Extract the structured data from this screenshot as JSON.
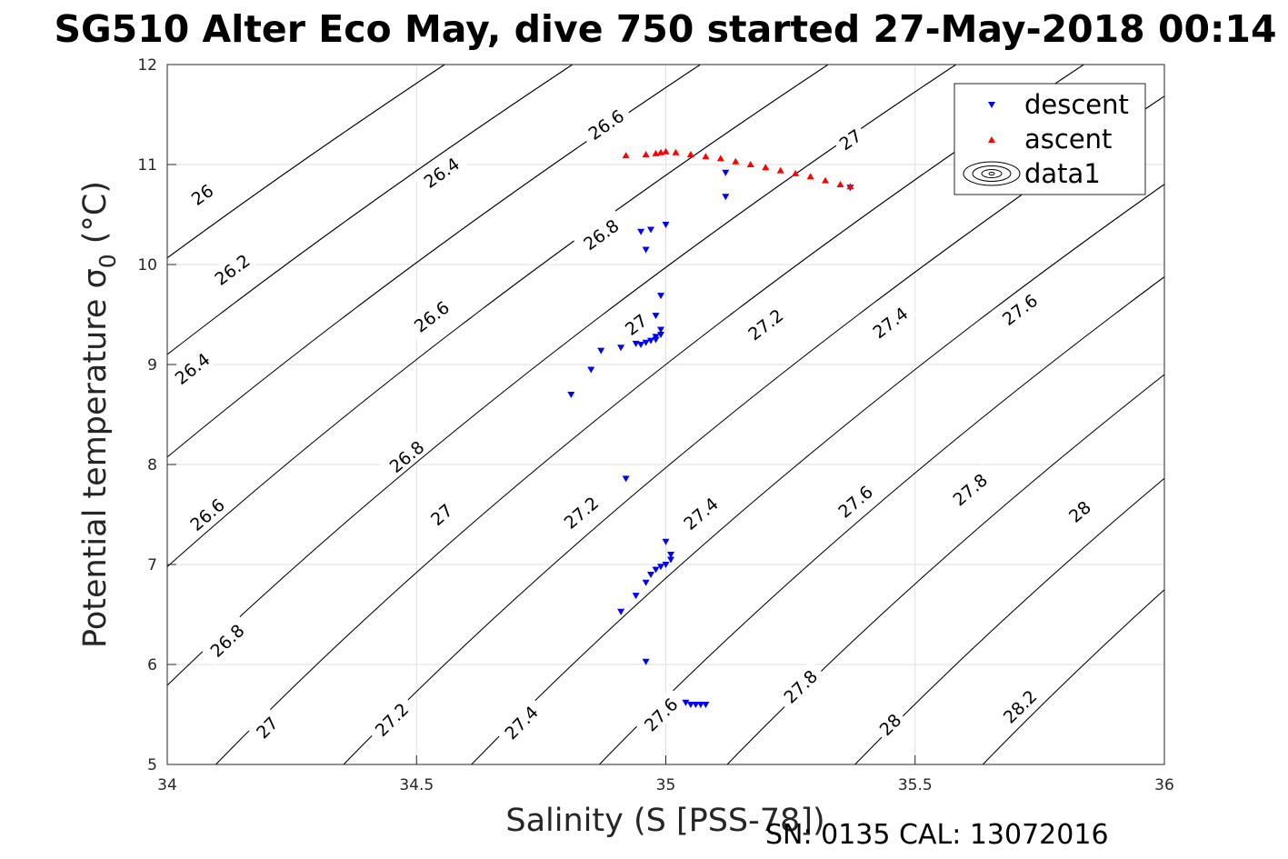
{
  "chart_data": {
    "type": "scatter",
    "title": "SG510 Alter Eco May, dive 750 started 27-May-2018 00:14",
    "xlabel": "Salinity (S [PSS-78])",
    "ylabel": "Potential temperature σ",
    "ylabel_subscript": "0",
    "ylabel_unit": " (°C)",
    "xlim": [
      34,
      36
    ],
    "ylim": [
      5,
      12
    ],
    "xticks": [
      34,
      34.5,
      35,
      35.5,
      36
    ],
    "xtick_labels": [
      "34",
      "34.5",
      "35",
      "35.5",
      "36"
    ],
    "yticks": [
      5,
      6,
      7,
      8,
      9,
      10,
      11,
      12
    ],
    "ytick_labels": [
      "5",
      "6",
      "7",
      "8",
      "9",
      "10",
      "11",
      "12"
    ],
    "grid": true,
    "legend_position": "top-right",
    "legend": [
      "descent",
      "ascent",
      "data1"
    ],
    "contour_levels": [
      26,
      26.2,
      26.4,
      26.6,
      26.8,
      27,
      27.2,
      27.4,
      27.6,
      27.8,
      28,
      28.2
    ],
    "contour_labels": [
      {
        "text": "26",
        "s": 34.07,
        "t": 10.7
      },
      {
        "text": "26.2",
        "s": 34.13,
        "t": 9.95
      },
      {
        "text": "26.4",
        "s": 34.05,
        "t": 8.96
      },
      {
        "text": "26.6",
        "s": 34.08,
        "t": 7.5
      },
      {
        "text": "26.8",
        "s": 34.12,
        "t": 6.24
      },
      {
        "text": "27",
        "s": 34.2,
        "t": 5.37
      },
      {
        "text": "26.4",
        "s": 34.55,
        "t": 10.92
      },
      {
        "text": "26.6",
        "s": 34.53,
        "t": 9.48
      },
      {
        "text": "26.8",
        "s": 34.48,
        "t": 8.08
      },
      {
        "text": "27",
        "s": 34.55,
        "t": 7.5
      },
      {
        "text": "27.2",
        "s": 34.45,
        "t": 5.45
      },
      {
        "text": "26.6",
        "s": 34.88,
        "t": 11.4
      },
      {
        "text": "26.8",
        "s": 34.87,
        "t": 10.3
      },
      {
        "text": "27",
        "s": 34.94,
        "t": 9.4
      },
      {
        "text": "27.2",
        "s": 34.83,
        "t": 7.52
      },
      {
        "text": "27.4",
        "s": 34.71,
        "t": 5.42
      },
      {
        "text": "27",
        "s": 35.37,
        "t": 11.25
      },
      {
        "text": "27.2",
        "s": 35.2,
        "t": 9.4
      },
      {
        "text": "27.4",
        "s": 35.07,
        "t": 7.51
      },
      {
        "text": "27.6",
        "s": 34.99,
        "t": 5.5
      },
      {
        "text": "27.4",
        "s": 35.45,
        "t": 9.42
      },
      {
        "text": "27.6",
        "s": 35.38,
        "t": 7.63
      },
      {
        "text": "27.8",
        "s": 35.27,
        "t": 5.78
      },
      {
        "text": "27.6",
        "s": 35.71,
        "t": 9.55
      },
      {
        "text": "27.8",
        "s": 35.61,
        "t": 7.75
      },
      {
        "text": "28",
        "s": 35.45,
        "t": 5.4
      },
      {
        "text": "28",
        "s": 35.83,
        "t": 7.53
      },
      {
        "text": "28.2",
        "s": 35.71,
        "t": 5.58
      }
    ],
    "series": [
      {
        "name": "descent",
        "marker": "down-triangle",
        "color": "#0000ff",
        "points": [
          [
            35.37,
            10.77
          ],
          [
            35.12,
            10.92
          ],
          [
            35.12,
            10.68
          ],
          [
            35.0,
            10.4
          ],
          [
            34.97,
            10.35
          ],
          [
            34.95,
            10.33
          ],
          [
            34.96,
            10.15
          ],
          [
            34.99,
            9.69
          ],
          [
            34.98,
            9.49
          ],
          [
            34.99,
            9.35
          ],
          [
            34.99,
            9.3
          ],
          [
            34.98,
            9.28
          ],
          [
            34.98,
            9.25
          ],
          [
            34.97,
            9.24
          ],
          [
            34.96,
            9.22
          ],
          [
            34.95,
            9.2
          ],
          [
            34.94,
            9.21
          ],
          [
            34.91,
            9.17
          ],
          [
            34.87,
            9.14
          ],
          [
            34.85,
            8.95
          ],
          [
            34.81,
            8.7
          ],
          [
            34.92,
            7.86
          ],
          [
            35.0,
            7.23
          ],
          [
            35.01,
            7.1
          ],
          [
            35.01,
            7.05
          ],
          [
            35.0,
            7.0
          ],
          [
            34.99,
            6.98
          ],
          [
            34.98,
            6.95
          ],
          [
            34.97,
            6.9
          ],
          [
            34.96,
            6.82
          ],
          [
            34.94,
            6.69
          ],
          [
            34.91,
            6.53
          ],
          [
            34.96,
            6.03
          ],
          [
            35.04,
            5.62
          ],
          [
            35.05,
            5.6
          ],
          [
            35.06,
            5.6
          ],
          [
            35.07,
            5.6
          ],
          [
            35.08,
            5.6
          ]
        ]
      },
      {
        "name": "ascent",
        "marker": "up-triangle",
        "color": "#ff0000",
        "points": [
          [
            34.92,
            11.09
          ],
          [
            34.96,
            11.1
          ],
          [
            34.98,
            11.11
          ],
          [
            34.99,
            11.12
          ],
          [
            35.0,
            11.13
          ],
          [
            35.02,
            11.12
          ],
          [
            35.05,
            11.1
          ],
          [
            35.08,
            11.08
          ],
          [
            35.11,
            11.06
          ],
          [
            35.14,
            11.03
          ],
          [
            35.17,
            11.0
          ],
          [
            35.2,
            10.97
          ],
          [
            35.23,
            10.94
          ],
          [
            35.26,
            10.91
          ],
          [
            35.29,
            10.88
          ],
          [
            35.32,
            10.84
          ],
          [
            35.35,
            10.8
          ],
          [
            35.37,
            10.78
          ]
        ]
      }
    ]
  },
  "footer": "SN: 0135  CAL: 13072016"
}
